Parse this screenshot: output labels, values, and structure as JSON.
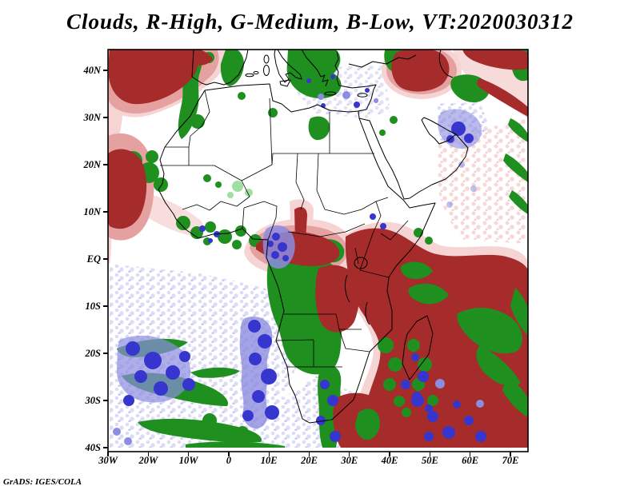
{
  "title": "Clouds, R-High, G-Medium, B-Low, VT:2020030312",
  "credit": "GrADS: IGES/COLA",
  "axes": {
    "lat_ticks": [
      "40N",
      "30N",
      "20N",
      "10N",
      "EQ",
      "10S",
      "20S",
      "30S",
      "40S"
    ],
    "lon_ticks": [
      "30W",
      "20W",
      "10W",
      "0",
      "10E",
      "20E",
      "30E",
      "40E",
      "50E",
      "60E",
      "70E"
    ]
  },
  "legend": {
    "high": {
      "label": "R-High",
      "color": "#A62B2B"
    },
    "medium": {
      "label": "G-Medium",
      "color": "#1F8F1F"
    },
    "low": {
      "label": "B-Low",
      "color": "#3636CE"
    }
  },
  "palette": {
    "high": "#A62B2B",
    "high_light": "#E5A0A0",
    "high_pale": "#F6D4D4",
    "medium": "#1F8F1F",
    "medium_light": "#9FDF9F",
    "low": "#3636CE",
    "low_mid": "#8C8CE0",
    "low_pale": "#DCDCF5"
  }
}
